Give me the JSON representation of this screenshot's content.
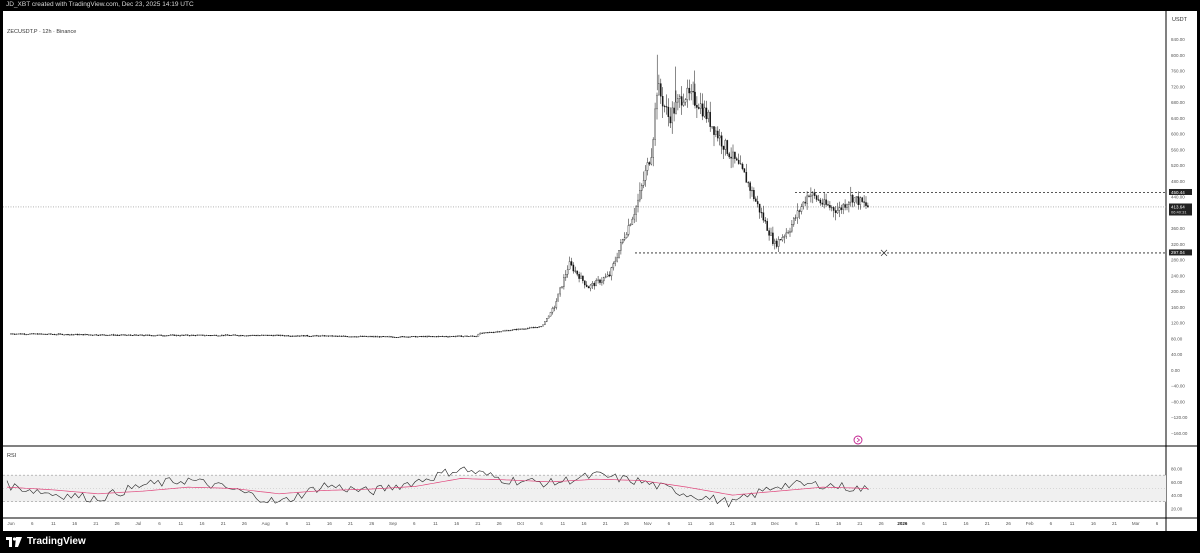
{
  "header": {
    "credit": "JD_XBT created with TradingView.com, Dec 23, 2025 14:19 UTC"
  },
  "footer": {
    "brand": "TradingView",
    "logo_icon": "tradingview-logo-icon"
  },
  "chart_data": [
    {
      "type": "candlestick",
      "title": "ZECUSDT.P · 12h · Binance",
      "currency": "USDT",
      "y_ticks": [
        "840.00",
        "800.00",
        "760.00",
        "720.00",
        "680.00",
        "640.00",
        "600.00",
        "560.00",
        "520.00",
        "480.00",
        "440.00",
        "400.00",
        "360.00",
        "320.00",
        "280.00",
        "240.00",
        "200.00",
        "160.00",
        "120.00",
        "80.00",
        "40.00",
        "0.00",
        "−40.00",
        "−80.00",
        "−120.00",
        "−160.00"
      ],
      "ylim": [
        -160,
        840
      ],
      "x_ticks": [
        "Jun",
        "6",
        "11",
        "16",
        "21",
        "26",
        "Jul",
        "6",
        "11",
        "16",
        "21",
        "26",
        "Aug",
        "6",
        "11",
        "16",
        "21",
        "26",
        "Sep",
        "6",
        "11",
        "16",
        "21",
        "26",
        "Oct",
        "6",
        "11",
        "16",
        "21",
        "26",
        "Nov",
        "6",
        "11",
        "16",
        "21",
        "26",
        "Dec",
        "6",
        "11",
        "16",
        "21",
        "26",
        "2026",
        "6",
        "11",
        "16",
        "21",
        "26",
        "Feb",
        "6",
        "11",
        "16",
        "21",
        "Mar",
        "6"
      ],
      "price_labels": [
        {
          "text": "450.44"
        },
        {
          "text": "413.64",
          "sub": "06:40:31"
        },
        {
          "text": "297.04"
        }
      ],
      "levels": [
        450.44,
        297.04
      ],
      "current_price": 413.64,
      "series": [
        {
          "segment": "flat base",
          "from": "Jun",
          "to": "Sep 26",
          "range": [
            80,
            100
          ]
        },
        {
          "segment": "uptrend",
          "from": "Sep 26",
          "to": "Nov 8",
          "start": 90,
          "end": 790
        },
        {
          "segment": "decline",
          "from": "Nov 8",
          "to": "Dec 1",
          "start": 790,
          "end": 297
        },
        {
          "segment": "recovery",
          "from": "Dec 1",
          "to": "Dec 23",
          "start": 300,
          "end": 413.64
        }
      ]
    },
    {
      "type": "line",
      "title": "RSI",
      "y_ticks": [
        "80.00",
        "60.00",
        "40.00",
        "20.00"
      ],
      "ylim": [
        13,
        102
      ],
      "bands": [
        30,
        70
      ],
      "middle": 50,
      "series": [
        {
          "values": [
            55,
            42,
            35,
            55,
            63,
            48,
            28,
            55,
            45,
            60,
            80,
            63,
            58,
            70,
            60,
            42,
            28,
            55,
            56,
            48
          ]
        },
        {
          "values": [
            52,
            48,
            42,
            46,
            52,
            50,
            42,
            47,
            49,
            53,
            65,
            63,
            60,
            64,
            62,
            52,
            40,
            46,
            52,
            50
          ]
        }
      ]
    }
  ],
  "colors": {
    "background": "#ffffff",
    "candles": "#111111",
    "rsi_line": "#222222",
    "rsi_ma": "#e0457b",
    "rsi_band": "#f0f0f0",
    "grid_dotted": "#888888",
    "frame": "#000000"
  }
}
